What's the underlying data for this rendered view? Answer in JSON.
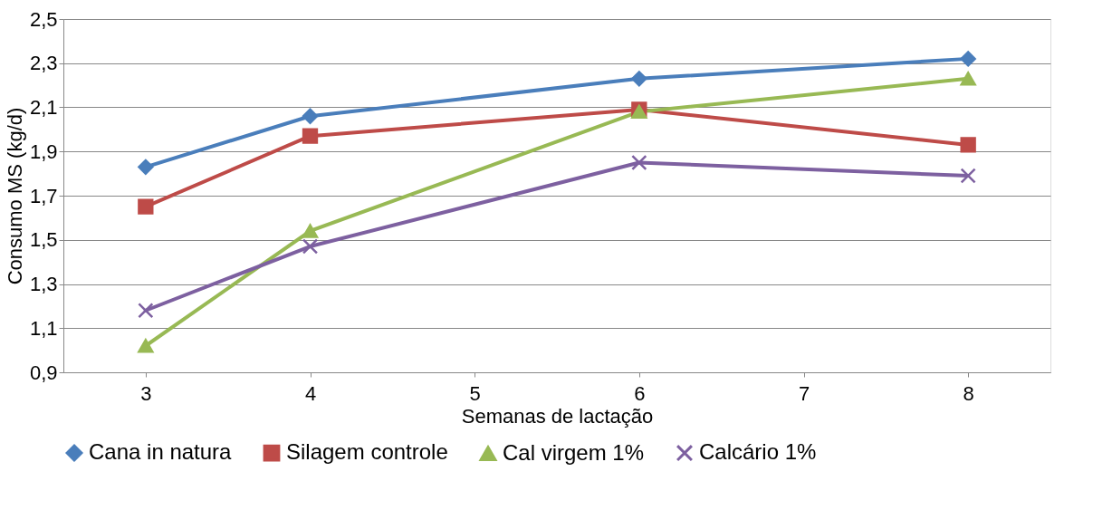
{
  "chart_data": {
    "type": "line",
    "xlabel": "Semanas de lactação",
    "ylabel": "Consumo MS (kg/d)",
    "x": [
      3,
      4,
      6,
      8
    ],
    "xlim": [
      2.5,
      8.5
    ],
    "xticks": [
      3,
      4,
      5,
      6,
      7,
      8
    ],
    "ylim": [
      0.9,
      2.5
    ],
    "yticks": [
      {
        "value": 0.9,
        "label": "0,9"
      },
      {
        "value": 1.1,
        "label": "1,1"
      },
      {
        "value": 1.3,
        "label": "1,3"
      },
      {
        "value": 1.5,
        "label": "1,5"
      },
      {
        "value": 1.7,
        "label": "1,7"
      },
      {
        "value": 1.9,
        "label": "1,9"
      },
      {
        "value": 2.1,
        "label": "2,1"
      },
      {
        "value": 2.3,
        "label": "2,3"
      },
      {
        "value": 2.5,
        "label": "2,5"
      }
    ],
    "grid": "y",
    "legend": "bottom",
    "line_style": "solid",
    "series": [
      {
        "name": "Cana in natura",
        "color": "#4a7ebb",
        "marker": "diamond",
        "values": [
          1.83,
          2.06,
          2.23,
          2.32
        ]
      },
      {
        "name": "Silagem controle",
        "color": "#be4b48",
        "marker": "square",
        "values": [
          1.65,
          1.97,
          2.09,
          1.93
        ]
      },
      {
        "name": "Cal virgem 1%",
        "color": "#98b954",
        "marker": "triangle",
        "values": [
          1.02,
          1.54,
          2.08,
          2.23
        ]
      },
      {
        "name": "Calcário 1%",
        "color": "#7d60a0",
        "marker": "cross",
        "values": [
          1.18,
          1.47,
          1.85,
          1.79
        ]
      }
    ]
  }
}
